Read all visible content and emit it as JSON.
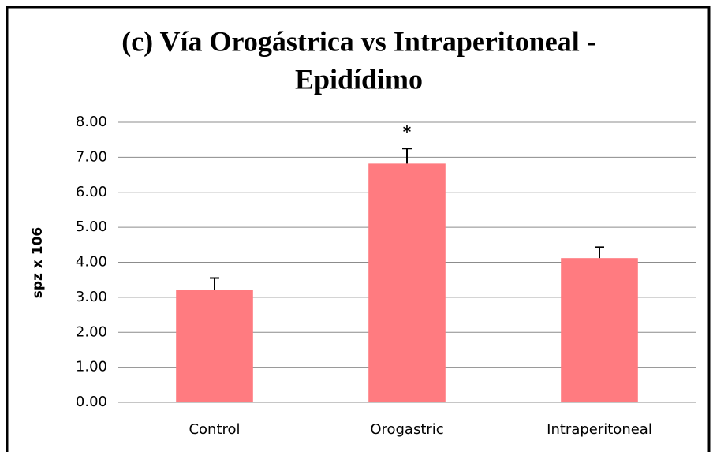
{
  "chart_data": {
    "type": "bar",
    "title": [
      "(c) Vía Orogástrica vs Intraperitoneal -",
      "Epidídimo"
    ],
    "y_label": "spz x 106",
    "categories": [
      "Control",
      "Orogastric",
      "Intraperitoneal"
    ],
    "values": [
      3.22,
      6.82,
      4.12
    ],
    "errors": [
      0.33,
      0.43,
      0.31
    ],
    "color": "#ff7b80",
    "ylim": [
      0,
      8
    ],
    "yticks": [
      {
        "value": 0,
        "label": "0.00"
      },
      {
        "value": 1,
        "label": "1.00"
      },
      {
        "value": 2,
        "label": "2.00"
      },
      {
        "value": 3,
        "label": "3.00"
      },
      {
        "value": 4,
        "label": "4.00"
      },
      {
        "value": 5,
        "label": "5.00"
      },
      {
        "value": 6,
        "label": "6.00"
      },
      {
        "value": 7,
        "label": "7.00"
      },
      {
        "value": 8,
        "label": "8.00"
      }
    ],
    "grid": true,
    "annotations": [
      {
        "text": "*",
        "category": "Orogastric"
      }
    ]
  }
}
